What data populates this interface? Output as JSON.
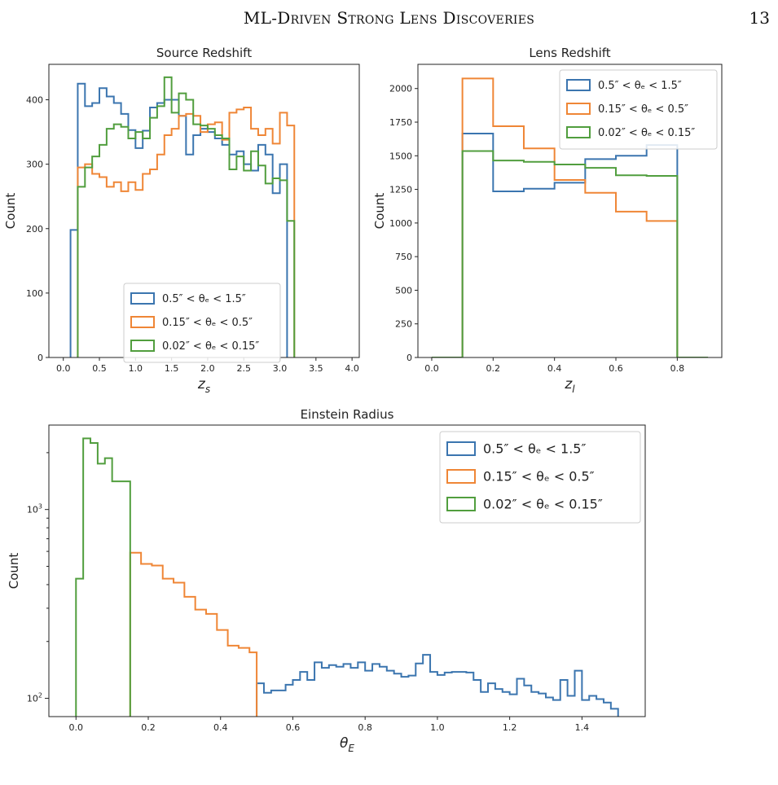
{
  "header": {
    "running_title": "ML-Driven Strong Lens Discoveries",
    "page_number": "13"
  },
  "legend_entries": [
    "0.5″ < θₑ < 1.5″",
    "0.15″ < θₑ < 0.5″",
    "0.02″ < θₑ < 0.15″"
  ],
  "colors": {
    "blue": "#3b75af",
    "orange": "#ef8636",
    "green": "#519e3e"
  },
  "chart_data": [
    {
      "type": "histogram",
      "title": "Source Redshift",
      "xlabel": "z_s",
      "ylabel": "Count",
      "xlim": [
        -0.2,
        4.1
      ],
      "ylim": [
        0,
        455
      ],
      "xticks": [
        0.0,
        0.5,
        1.0,
        1.5,
        2.0,
        2.5,
        3.0,
        3.5,
        4.0
      ],
      "yticks": [
        0,
        100,
        200,
        300,
        400
      ],
      "grid": false,
      "legend_position": "lower-center",
      "series": [
        {
          "name": "0.5″ < θₑ < 1.5″",
          "color": "#3b75af",
          "edges": [
            0.1,
            0.2,
            0.3,
            0.4,
            0.5,
            0.6,
            0.7,
            0.8,
            0.9,
            1.0,
            1.1,
            1.2,
            1.3,
            1.4,
            1.5,
            1.6,
            1.7,
            1.8,
            1.9,
            2.0,
            2.1,
            2.2,
            2.3,
            2.4,
            2.5,
            2.6,
            2.7,
            2.8,
            2.9,
            3.0,
            3.1
          ],
          "counts": [
            198,
            425,
            390,
            395,
            418,
            405,
            395,
            378,
            353,
            325,
            352,
            388,
            395,
            400,
            400,
            375,
            315,
            345,
            355,
            350,
            340,
            330,
            315,
            320,
            300,
            290,
            330,
            315,
            255,
            300
          ]
        },
        {
          "name": "0.15″ < θₑ < 0.5″",
          "color": "#ef8636",
          "edges": [
            0.2,
            0.3,
            0.4,
            0.5,
            0.6,
            0.7,
            0.8,
            0.9,
            1.0,
            1.1,
            1.2,
            1.3,
            1.4,
            1.5,
            1.6,
            1.7,
            1.8,
            1.9,
            2.0,
            2.1,
            2.2,
            2.3,
            2.4,
            2.5,
            2.6,
            2.7,
            2.8,
            2.9,
            3.0,
            3.1,
            3.2
          ],
          "counts": [
            295,
            300,
            285,
            280,
            265,
            272,
            258,
            272,
            260,
            285,
            292,
            315,
            345,
            355,
            375,
            378,
            375,
            350,
            362,
            365,
            338,
            380,
            385,
            388,
            355,
            345,
            355,
            332,
            380,
            360
          ]
        },
        {
          "name": "0.02″ < θₑ < 0.15″",
          "color": "#519e3e",
          "edges": [
            0.2,
            0.3,
            0.4,
            0.5,
            0.6,
            0.7,
            0.8,
            0.9,
            1.0,
            1.1,
            1.2,
            1.3,
            1.4,
            1.5,
            1.6,
            1.7,
            1.8,
            1.9,
            2.0,
            2.1,
            2.2,
            2.3,
            2.4,
            2.5,
            2.6,
            2.7,
            2.8,
            2.9,
            3.0,
            3.1,
            3.2
          ],
          "counts": [
            265,
            295,
            312,
            330,
            355,
            362,
            358,
            340,
            350,
            340,
            372,
            390,
            435,
            380,
            410,
            400,
            362,
            360,
            355,
            345,
            340,
            292,
            312,
            290,
            320,
            298,
            270,
            278,
            275,
            212
          ]
        }
      ]
    },
    {
      "type": "histogram",
      "title": "Lens Redshift",
      "xlabel": "z_l",
      "ylabel": "Count",
      "xlim": [
        -0.045,
        0.945
      ],
      "ylim": [
        0,
        2180
      ],
      "xticks": [
        0.0,
        0.2,
        0.4,
        0.6,
        0.8
      ],
      "yticks": [
        0,
        250,
        500,
        750,
        1000,
        1250,
        1500,
        1750,
        2000
      ],
      "grid": false,
      "legend_position": "top-right",
      "series": [
        {
          "name": "0.5″ < θₑ < 1.5″",
          "color": "#3b75af",
          "edges": [
            0.0,
            0.1,
            0.2,
            0.3,
            0.4,
            0.5,
            0.6,
            0.7,
            0.8,
            0.9
          ],
          "counts": [
            0,
            1665,
            1235,
            1255,
            1300,
            1475,
            1500,
            1580,
            0
          ]
        },
        {
          "name": "0.15″ < θₑ < 0.5″",
          "color": "#ef8636",
          "edges": [
            0.0,
            0.1,
            0.2,
            0.3,
            0.4,
            0.5,
            0.6,
            0.7,
            0.8,
            0.9
          ],
          "counts": [
            0,
            2075,
            1720,
            1555,
            1320,
            1225,
            1085,
            1015,
            0
          ]
        },
        {
          "name": "0.02″ < θₑ < 0.15″",
          "color": "#519e3e",
          "edges": [
            0.0,
            0.1,
            0.2,
            0.3,
            0.4,
            0.5,
            0.6,
            0.7,
            0.8,
            0.9
          ],
          "counts": [
            0,
            1535,
            1465,
            1455,
            1435,
            1410,
            1355,
            1350,
            0
          ]
        }
      ]
    },
    {
      "type": "histogram",
      "title": "Einstein Radius",
      "xlabel": "θ_E",
      "ylabel": "Count",
      "yscale": "log",
      "xlim": [
        -0.075,
        1.575
      ],
      "ylim": [
        80,
        2800
      ],
      "xticks": [
        0.0,
        0.2,
        0.4,
        0.6,
        0.8,
        1.0,
        1.2,
        1.4
      ],
      "yticks_major": [
        100,
        1000
      ],
      "yticks_minor": [
        200,
        300,
        400,
        500,
        600,
        700,
        800,
        900,
        2000
      ],
      "grid": false,
      "legend_position": "top-right",
      "series": [
        {
          "name": "0.5″ < θₑ < 1.5″",
          "color": "#3b75af",
          "edges": [
            0.5,
            0.52,
            0.54,
            0.56,
            0.58,
            0.6,
            0.62,
            0.64,
            0.66,
            0.68,
            0.7,
            0.72,
            0.74,
            0.76,
            0.78,
            0.8,
            0.82,
            0.84,
            0.86,
            0.88,
            0.9,
            0.92,
            0.94,
            0.96,
            0.98,
            1.0,
            1.02,
            1.04,
            1.06,
            1.08,
            1.1,
            1.12,
            1.14,
            1.16,
            1.18,
            1.2,
            1.22,
            1.24,
            1.26,
            1.28,
            1.3,
            1.32,
            1.34,
            1.36,
            1.38,
            1.4,
            1.42,
            1.44,
            1.46,
            1.48,
            1.5
          ],
          "counts": [
            120,
            107,
            110,
            110,
            118,
            125,
            138,
            125,
            155,
            145,
            150,
            147,
            152,
            145,
            155,
            140,
            152,
            147,
            140,
            135,
            130,
            132,
            153,
            170,
            138,
            133,
            137,
            138,
            138,
            137,
            125,
            108,
            120,
            112,
            108,
            105,
            127,
            117,
            108,
            106,
            101,
            98,
            125,
            103,
            140,
            98,
            103,
            99,
            95,
            88
          ]
        },
        {
          "name": "0.15″ < θₑ < 0.5″",
          "color": "#ef8636",
          "edges": [
            0.15,
            0.18,
            0.21,
            0.24,
            0.27,
            0.3,
            0.33,
            0.36,
            0.39,
            0.42,
            0.45,
            0.48,
            0.5
          ],
          "counts": [
            590,
            515,
            505,
            430,
            410,
            345,
            295,
            280,
            230,
            190,
            185,
            175
          ]
        },
        {
          "name": "0.02″ < θₑ < 0.15″",
          "color": "#519e3e",
          "edges": [
            0.0,
            0.02,
            0.04,
            0.06,
            0.08,
            0.1,
            0.12,
            0.15
          ],
          "counts": [
            430,
            2380,
            2250,
            1750,
            1870,
            1410,
            1410
          ]
        }
      ]
    }
  ]
}
